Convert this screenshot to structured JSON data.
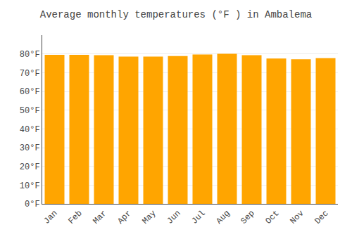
{
  "chart_data": {
    "type": "bar",
    "title": "Average monthly temperatures (°F ) in Ambalema",
    "categories": [
      "Jan",
      "Feb",
      "Mar",
      "Apr",
      "May",
      "Jun",
      "Jul",
      "Aug",
      "Sep",
      "Oct",
      "Nov",
      "Dec"
    ],
    "values": [
      79.5,
      79.5,
      79.3,
      78.6,
      78.6,
      78.8,
      79.7,
      80.1,
      79.3,
      77.5,
      77.2,
      77.7
    ],
    "color": "#FFA500",
    "ylim": [
      0,
      90
    ],
    "yticks": [
      {
        "value": 0,
        "label": "0°F"
      },
      {
        "value": 10,
        "label": "10°F"
      },
      {
        "value": 20,
        "label": "20°F"
      },
      {
        "value": 30,
        "label": "30°F"
      },
      {
        "value": 40,
        "label": "40°F"
      },
      {
        "value": 50,
        "label": "50°F"
      },
      {
        "value": 60,
        "label": "60°F"
      },
      {
        "value": 70,
        "label": "70°F"
      },
      {
        "value": 80,
        "label": "80°F"
      }
    ],
    "grid": true
  }
}
